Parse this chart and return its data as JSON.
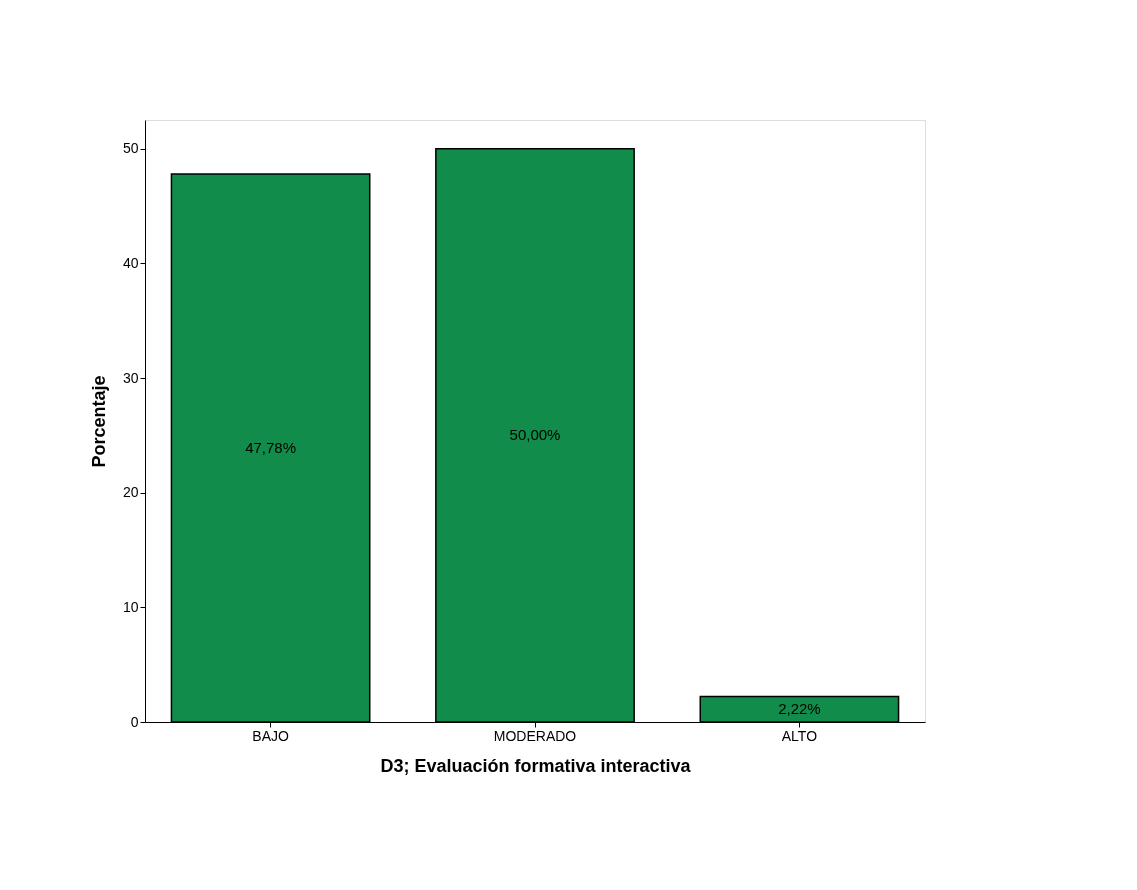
{
  "chart_data": {
    "type": "bar",
    "xlabel": "D3; Evaluación formativa interactiva",
    "ylabel": "Porcentaje",
    "categories": [
      "BAJO",
      "MODERADO",
      "ALTO"
    ],
    "values": [
      47.78,
      50.0,
      2.22
    ],
    "value_labels": [
      "47,78%",
      "50,00%",
      "2,22%"
    ],
    "color": "#118c4a",
    "ylim": [
      0,
      52.5
    ],
    "yticks": [
      0,
      10,
      20,
      30,
      40,
      50
    ],
    "grid": false
  }
}
